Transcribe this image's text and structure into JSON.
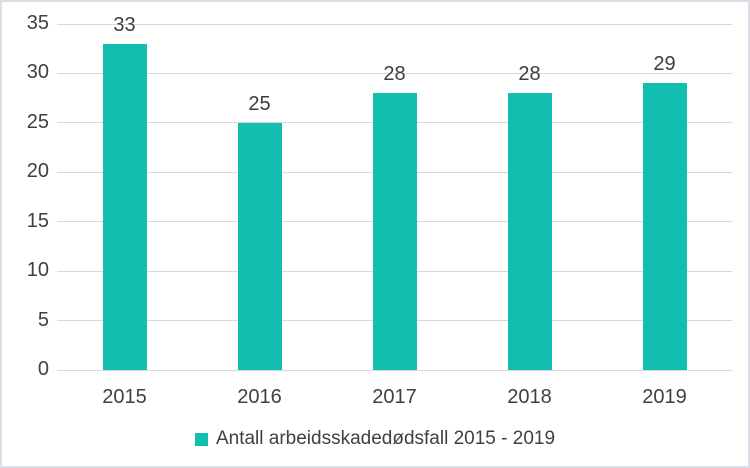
{
  "chart_data": {
    "type": "bar",
    "categories": [
      "2015",
      "2016",
      "2017",
      "2018",
      "2019"
    ],
    "values": [
      33,
      25,
      28,
      28,
      29
    ],
    "series_name": "Antall arbeidsskadedødsfall 2015 - 2019",
    "title": "",
    "xlabel": "",
    "ylabel": "",
    "ylim": [
      0,
      35
    ],
    "yticks": [
      0,
      5,
      10,
      15,
      20,
      25,
      30,
      35
    ],
    "grid": true,
    "legend_position": "bottom",
    "colors": {
      "bar": "#12beb0",
      "gridline": "#d9d9d9",
      "axis_text": "#404040",
      "data_label": "#3d3d3d",
      "frame_border": "#d9dfe4",
      "background": "#ffffff"
    }
  }
}
